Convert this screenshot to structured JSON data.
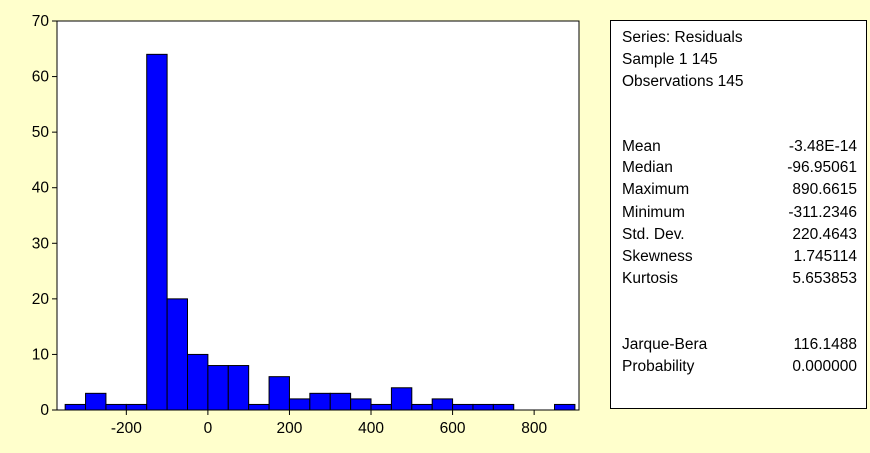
{
  "chart_data": {
    "type": "bar",
    "bin_width": 50,
    "bins": [
      {
        "start": -350,
        "end": -300,
        "count": 1
      },
      {
        "start": -300,
        "end": -250,
        "count": 3
      },
      {
        "start": -250,
        "end": -200,
        "count": 1
      },
      {
        "start": -200,
        "end": -150,
        "count": 1
      },
      {
        "start": -150,
        "end": -100,
        "count": 64
      },
      {
        "start": -100,
        "end": -50,
        "count": 20
      },
      {
        "start": -50,
        "end": 0,
        "count": 10
      },
      {
        "start": 0,
        "end": 50,
        "count": 8
      },
      {
        "start": 50,
        "end": 100,
        "count": 8
      },
      {
        "start": 100,
        "end": 150,
        "count": 1
      },
      {
        "start": 150,
        "end": 200,
        "count": 6
      },
      {
        "start": 200,
        "end": 250,
        "count": 2
      },
      {
        "start": 250,
        "end": 300,
        "count": 3
      },
      {
        "start": 300,
        "end": 350,
        "count": 3
      },
      {
        "start": 350,
        "end": 400,
        "count": 2
      },
      {
        "start": 400,
        "end": 450,
        "count": 1
      },
      {
        "start": 450,
        "end": 500,
        "count": 4
      },
      {
        "start": 500,
        "end": 550,
        "count": 1
      },
      {
        "start": 550,
        "end": 600,
        "count": 2
      },
      {
        "start": 600,
        "end": 650,
        "count": 1
      },
      {
        "start": 650,
        "end": 700,
        "count": 1
      },
      {
        "start": 700,
        "end": 750,
        "count": 1
      },
      {
        "start": 850,
        "end": 900,
        "count": 1
      }
    ],
    "xlim": [
      -370,
      910
    ],
    "ylim": [
      0,
      70
    ],
    "x_ticks": [
      -200,
      0,
      200,
      400,
      600,
      800
    ],
    "y_ticks": [
      0,
      10,
      20,
      30,
      40,
      50,
      60,
      70
    ],
    "grid": false,
    "bar_color": "#0000ff",
    "bar_edge_color": "#000000",
    "xlabel": "",
    "ylabel": "",
    "title": ""
  },
  "stats_panel": {
    "header_lines": [
      "Series: Residuals",
      "Sample 1 145",
      "Observations 145"
    ],
    "stats": [
      {
        "label": "Mean",
        "value": "-3.48E-14"
      },
      {
        "label": "Median",
        "value": "-96.95061"
      },
      {
        "label": "Maximum",
        "value": "890.6615"
      },
      {
        "label": "Minimum",
        "value": "-311.2346"
      },
      {
        "label": "Std. Dev.",
        "value": "220.4643"
      },
      {
        "label": "Skewness",
        "value": "1.745114"
      },
      {
        "label": "Kurtosis",
        "value": "5.653853"
      }
    ],
    "tests": [
      {
        "label": "Jarque-Bera",
        "value": "116.1488"
      },
      {
        "label": "Probability",
        "value": "0.000000"
      }
    ]
  }
}
